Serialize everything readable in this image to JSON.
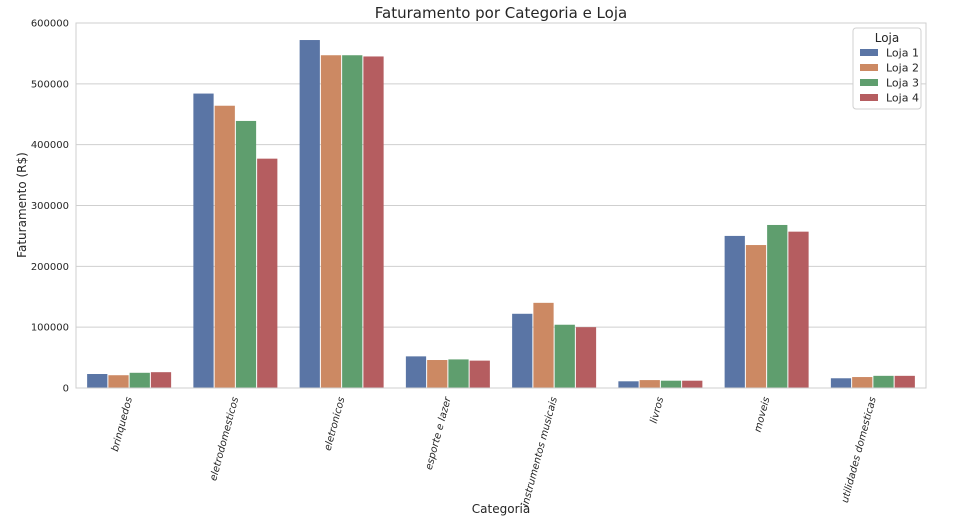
{
  "chart_data": {
    "type": "bar",
    "title": "Faturamento por Categoria e Loja",
    "xlabel": "Categoria",
    "ylabel": "Faturamento (R$)",
    "ylim": [
      0,
      600000
    ],
    "yticks": [
      0,
      100000,
      200000,
      300000,
      400000,
      500000,
      600000
    ],
    "grid": true,
    "legend": {
      "title": "Loja",
      "placement": "top-right"
    },
    "categories": [
      "brinquedos",
      "eletrodomesticos",
      "eletronicos",
      "esporte e lazer",
      "instrumentos musicais",
      "livros",
      "moveis",
      "utilidades domesticas"
    ],
    "series": [
      {
        "name": "Loja 1",
        "color": "#5a75a5",
        "values": [
          23000,
          484000,
          572000,
          52000,
          122000,
          11000,
          250000,
          16000
        ]
      },
      {
        "name": "Loja 2",
        "color": "#cc8963",
        "values": [
          21000,
          464000,
          547000,
          46000,
          140000,
          13000,
          235000,
          18000
        ]
      },
      {
        "name": "Loja 3",
        "color": "#5f9e6e",
        "values": [
          25000,
          439000,
          547000,
          47000,
          104000,
          12000,
          268000,
          20000
        ]
      },
      {
        "name": "Loja 4",
        "color": "#b55d60",
        "values": [
          26000,
          377000,
          545000,
          45000,
          100000,
          12000,
          257000,
          20000
        ]
      }
    ]
  }
}
